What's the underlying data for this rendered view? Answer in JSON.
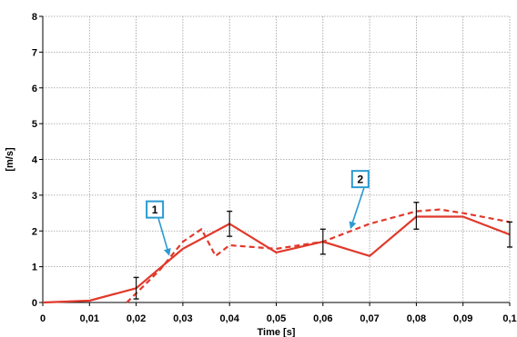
{
  "chart_data": {
    "type": "line",
    "xlabel": "Time [s]",
    "ylabel": "[m/s]",
    "xlim": [
      0,
      0.1
    ],
    "ylim": [
      0,
      8
    ],
    "grid": true,
    "x_ticks": [
      "0",
      "0,01",
      "0,02",
      "0,03",
      "0,04",
      "0,05",
      "0,06",
      "0,07",
      "0,08",
      "0,09",
      "0,1"
    ],
    "y_ticks": [
      "0",
      "1",
      "2",
      "3",
      "4",
      "5",
      "6",
      "7",
      "8"
    ],
    "series": [
      {
        "style": "solid",
        "color": "#e0392b",
        "x": [
          0,
          0.01,
          0.02,
          0.03,
          0.04,
          0.05,
          0.06,
          0.07,
          0.08,
          0.09,
          0.1
        ],
        "y": [
          0,
          0.05,
          0.4,
          1.5,
          2.2,
          1.4,
          1.7,
          1.3,
          2.4,
          2.4,
          1.9
        ]
      },
      {
        "style": "dashed",
        "color": "#e0392b",
        "x": [
          0.018,
          0.025,
          0.03,
          0.034,
          0.037,
          0.04,
          0.05,
          0.06,
          0.07,
          0.08,
          0.085,
          0.09,
          0.1
        ],
        "y": [
          0,
          0.9,
          1.7,
          2.05,
          1.3,
          1.6,
          1.5,
          1.7,
          2.2,
          2.55,
          2.6,
          2.5,
          2.25
        ]
      }
    ],
    "error_bars": [
      {
        "x": 0.02,
        "low": 0.1,
        "high": 0.7
      },
      {
        "x": 0.04,
        "low": 1.85,
        "high": 2.55
      },
      {
        "x": 0.06,
        "low": 1.35,
        "high": 2.05
      },
      {
        "x": 0.08,
        "low": 2.05,
        "high": 2.8
      },
      {
        "x": 0.1,
        "low": 1.55,
        "high": 2.25
      }
    ],
    "annotations": [
      {
        "label": "1",
        "box_at": [
          0.024,
          2.6
        ],
        "arrow_to": [
          0.027,
          1.35
        ]
      },
      {
        "label": "2",
        "box_at": [
          0.068,
          3.45
        ],
        "arrow_to": [
          0.066,
          2.1
        ]
      }
    ],
    "annotation_color": "#2a9bd0"
  }
}
